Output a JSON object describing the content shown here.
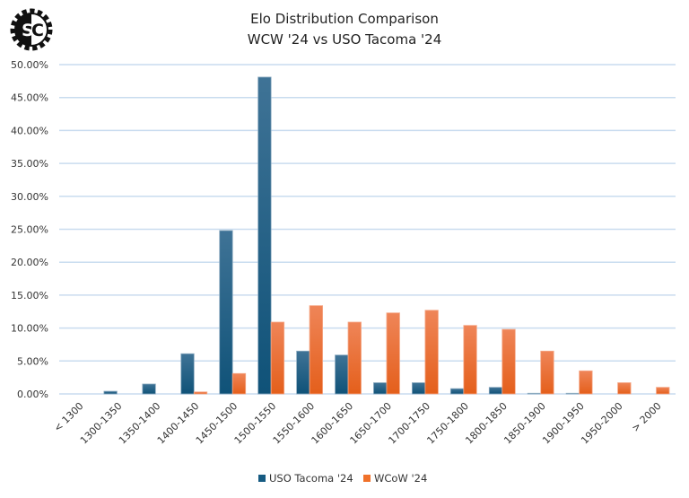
{
  "chart_data": {
    "type": "bar",
    "title": "Elo Distribution Comparison",
    "subtitle": "WCW '24 vs USO Tacoma '24",
    "logo_text": "SC",
    "xlabel": "",
    "ylabel": "",
    "ylim": [
      0,
      50
    ],
    "ytick_labels": [
      "0.00%",
      "5.00%",
      "10.00%",
      "15.00%",
      "20.00%",
      "25.00%",
      "30.00%",
      "35.00%",
      "40.00%",
      "45.00%",
      "50.00%"
    ],
    "grid": true,
    "legend_position": "bottom",
    "categories": [
      "< 1300",
      "1300-1350",
      "1350-1400",
      "1400-1450",
      "1450-1500",
      "1500-1550",
      "1550-1600",
      "1600-1650",
      "1650-1700",
      "1700-1750",
      "1750-1800",
      "1800-1850",
      "1850-1900",
      "1900-1950",
      "1950-2000",
      "> 2000"
    ],
    "series": [
      {
        "name": "USO Tacoma '24",
        "color": "#165b82",
        "values": [
          0,
          0.4,
          1.5,
          6.1,
          24.8,
          48.1,
          6.5,
          5.9,
          1.7,
          1.7,
          0.8,
          1.0,
          0.1,
          0.1,
          0,
          0
        ]
      },
      {
        "name": "WCoW '24",
        "color": "#f0712a",
        "values": [
          0,
          0,
          0,
          0.3,
          3.1,
          10.9,
          13.4,
          10.9,
          12.3,
          12.7,
          10.4,
          9.8,
          6.5,
          3.5,
          1.7,
          1.0
        ]
      }
    ]
  }
}
